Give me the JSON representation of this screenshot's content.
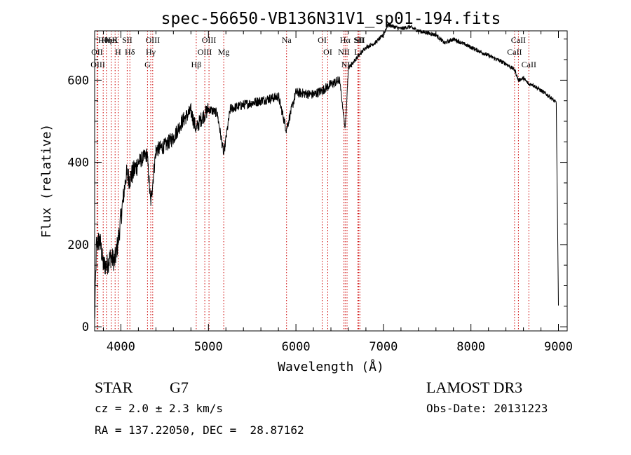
{
  "chart_data": {
    "type": "line",
    "title": "spec-56650-VB136N31V1_sp01-194.fits",
    "xlabel": "Wavelength (Å)",
    "ylabel": "Flux (relative)",
    "xlim": [
      3700,
      9100
    ],
    "ylim": [
      -10,
      720
    ],
    "x_ticks": [
      4000,
      5000,
      6000,
      7000,
      8000,
      9000
    ],
    "x_tick_labels": [
      "4000",
      "5000",
      "6000",
      "7000",
      "8000",
      "9000"
    ],
    "y_ticks": [
      0,
      200,
      400,
      600
    ],
    "y_tick_labels": [
      "0",
      "200",
      "400",
      "600"
    ],
    "grid": false,
    "line_color": "#000000",
    "marker_color": "#cc0000",
    "spectrum_anchors": {
      "x": [
        3700,
        3720,
        3760,
        3800,
        3840,
        3880,
        3930,
        3970,
        4020,
        4060,
        4100,
        4200,
        4300,
        4340,
        4400,
        4500,
        4600,
        4700,
        4800,
        4860,
        4900,
        5000,
        5100,
        5175,
        5250,
        5400,
        5600,
        5800,
        5890,
        6000,
        6200,
        6300,
        6400,
        6500,
        6563,
        6600,
        6700,
        6800,
        6900,
        7000,
        7050,
        7200,
        7300,
        7400,
        7600,
        7700,
        7800,
        8000,
        8200,
        8400,
        8500,
        8542,
        8600,
        8662,
        8700,
        8800,
        8900,
        8975,
        9000
      ],
      "y": [
        10,
        200,
        210,
        150,
        150,
        170,
        160,
        210,
        300,
        370,
        360,
        400,
        420,
        300,
        430,
        440,
        460,
        500,
        525,
        480,
        500,
        530,
        520,
        420,
        530,
        540,
        550,
        560,
        480,
        570,
        565,
        575,
        590,
        600,
        480,
        630,
        655,
        680,
        690,
        710,
        735,
        725,
        730,
        720,
        710,
        690,
        700,
        680,
        660,
        640,
        625,
        600,
        605,
        590,
        590,
        575,
        560,
        545,
        50
      ]
    },
    "lines": [
      {
        "label": "Hθ",
        "x": 3798
      },
      {
        "label": "OII",
        "x": 3727
      },
      {
        "label": "OIII",
        "x": 3737
      },
      {
        "label": "HeI",
        "x": 3889
      },
      {
        "label": "Hη",
        "x": 3835
      },
      {
        "label": "K",
        "x": 3934
      },
      {
        "label": "SII",
        "x": 4072
      },
      {
        "label": "H",
        "x": 3968
      },
      {
        "label": "Hδ",
        "x": 4102
      },
      {
        "label": "OIII",
        "x": 4363
      },
      {
        "label": "Hγ",
        "x": 4341
      },
      {
        "label": "G",
        "x": 4304
      },
      {
        "label": "OIII",
        "x": 5007
      },
      {
        "label": "OIII",
        "x": 4959
      },
      {
        "label": "Hβ",
        "x": 4861
      },
      {
        "label": "Mg",
        "x": 5175
      },
      {
        "label": "Na",
        "x": 5893
      },
      {
        "label": "OI",
        "x": 6300
      },
      {
        "label": "OI",
        "x": 6364
      },
      {
        "label": "Hα",
        "x": 6563
      },
      {
        "label": "SII",
        "x": 6717
      },
      {
        "label": "NII",
        "x": 6548
      },
      {
        "label": "Li",
        "x": 6708
      },
      {
        "label": "NII",
        "x": 6584
      },
      {
        "label": "SII",
        "x": 6731
      },
      {
        "label": "CaII",
        "x": 8542
      },
      {
        "label": "CaII",
        "x": 8498
      },
      {
        "label": "CaII",
        "x": 8662
      }
    ]
  },
  "info": {
    "object_class": "STAR",
    "subclass": "G7",
    "redshift_text": "cz = 2.0 ± 2.3 km/s",
    "coords_text": "RA = 137.22050, DEC =  28.87162",
    "survey": "LAMOST DR3",
    "obs_date_text": "Obs-Date: 20131223"
  }
}
